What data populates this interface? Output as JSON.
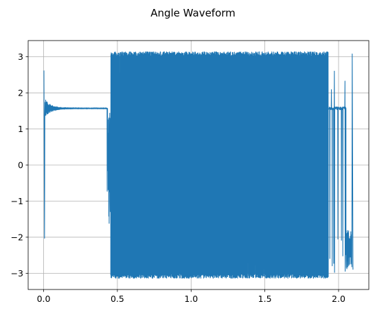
{
  "chart_data": {
    "type": "line",
    "title": "Angle Waveform",
    "xlabel": "",
    "ylabel": "",
    "xlim": [
      -0.105,
      2.205
    ],
    "ylim": [
      -3.45,
      3.45
    ],
    "xticks": [
      0.0,
      0.5,
      1.0,
      1.5,
      2.0
    ],
    "xtick_labels": [
      "0.0",
      "0.5",
      "1.0",
      "1.5",
      "2.0"
    ],
    "yticks": [
      -3,
      -2,
      -1,
      0,
      1,
      2,
      3
    ],
    "ytick_labels": [
      "−3",
      "−2",
      "−1",
      "0",
      "1",
      "2",
      "3"
    ],
    "grid": true,
    "series_color": "#1f77b4",
    "segments": [
      {
        "range": [
          0.0,
          0.008
        ],
        "behavior": "spike",
        "values": [
          2.62,
          -2.03
        ]
      },
      {
        "range": [
          0.008,
          0.43
        ],
        "behavior": "settling",
        "level": 1.5708,
        "initial_amplitude": 0.25
      },
      {
        "range": [
          0.43,
          0.455
        ],
        "behavior": "transition",
        "min": -1.7,
        "max": 1.6
      },
      {
        "range": [
          0.455,
          1.93
        ],
        "behavior": "dense-oscillation",
        "min": -3.14,
        "max": 3.14
      },
      {
        "range": [
          1.93,
          2.05
        ],
        "behavior": "intermittent",
        "level": 1.5708,
        "min": -3.1,
        "max": 3.0
      },
      {
        "range": [
          2.05,
          2.09
        ],
        "behavior": "dip",
        "min": -2.9,
        "max": -1.8
      },
      {
        "range": [
          2.09,
          2.1
        ],
        "behavior": "spike",
        "values": [
          3.08,
          -2.9
        ]
      }
    ]
  }
}
